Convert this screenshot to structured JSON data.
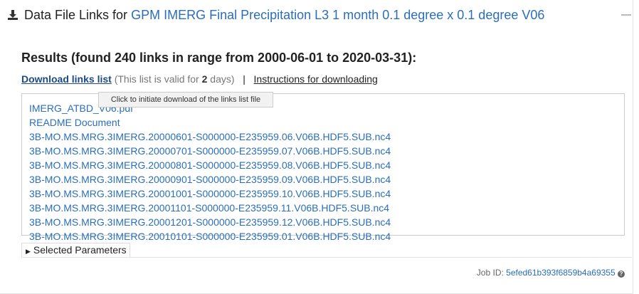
{
  "header": {
    "prefix": "Data File Links for",
    "dataset": "GPM IMERG Final Precipitation L3 1 month 0.1 degree x 0.1 degree V06"
  },
  "results": {
    "heading": "Results (found 240 links in range from 2000-06-01 to 2020-03-31):",
    "download_link": "Download links list",
    "validity_before": "(This list is valid for",
    "validity_days": "2",
    "validity_after": "days)",
    "separator": "|",
    "instructions": "Instructions for downloading",
    "tooltip": "Click to initiate download of the links list file",
    "links": [
      "IMERG_ATBD_V06.pdf",
      "README Document",
      "3B-MO.MS.MRG.3IMERG.20000601-S000000-E235959.06.V06B.HDF5.SUB.nc4",
      "3B-MO.MS.MRG.3IMERG.20000701-S000000-E235959.07.V06B.HDF5.SUB.nc4",
      "3B-MO.MS.MRG.3IMERG.20000801-S000000-E235959.08.V06B.HDF5.SUB.nc4",
      "3B-MO.MS.MRG.3IMERG.20000901-S000000-E235959.09.V06B.HDF5.SUB.nc4",
      "3B-MO.MS.MRG.3IMERG.20001001-S000000-E235959.10.V06B.HDF5.SUB.nc4",
      "3B-MO.MS.MRG.3IMERG.20001101-S000000-E235959.11.V06B.HDF5.SUB.nc4",
      "3B-MO.MS.MRG.3IMERG.20001201-S000000-E235959.12.V06B.HDF5.SUB.nc4",
      "3B-MO.MS.MRG.3IMERG.20010101-S000000-E235959.01.V06B.HDF5.SUB.nc4"
    ]
  },
  "selected_parameters": "Selected Parameters",
  "job": {
    "label": "Job ID:",
    "id": "5efed61b393f6859b4a69355"
  }
}
